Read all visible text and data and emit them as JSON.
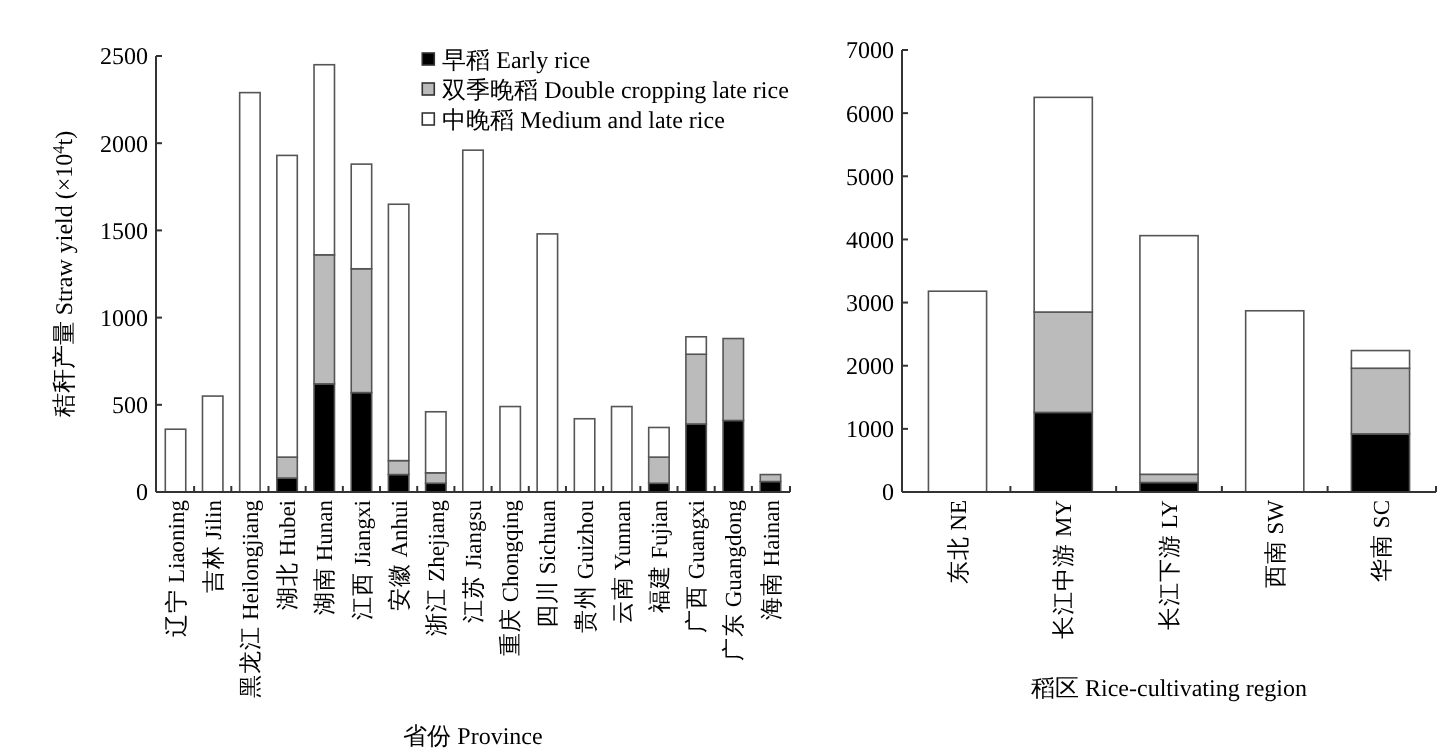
{
  "chart_data": [
    {
      "type": "bar",
      "stacked": true,
      "xlabel": "省份 Province",
      "ylabel": "秸秆产量 Straw yield (×10$^{4}$t)",
      "categories": [
        "辽宁 Liaoning",
        "吉林 Jilin",
        "黑龙江 Heilongjiang",
        "湖北 Hubei",
        "湖南 Hunan",
        "江西 Jiangxi",
        "安徽 Anhui",
        "浙江 Zhejiang",
        "江苏 Jiangsu",
        "重庆 Chongqing",
        "四川 Sichuan",
        "贵州 Guizhou",
        "云南 Yunnan",
        "福建 Fujian",
        "广西 Guangxi",
        "广东 Guangdong",
        "海南 Hainan"
      ],
      "series": [
        {
          "name": "早稻 Early rice",
          "color": "#000000",
          "values": [
            null,
            null,
            null,
            80,
            620,
            570,
            100,
            50,
            null,
            null,
            null,
            null,
            null,
            50,
            390,
            410,
            60
          ]
        },
        {
          "name": "双季晚稻 Double cropping late rice",
          "color": "#bbbbbb",
          "values": [
            null,
            null,
            null,
            120,
            740,
            710,
            80,
            60,
            null,
            null,
            null,
            null,
            null,
            150,
            400,
            470,
            40
          ]
        },
        {
          "name": "中晚稻 Medium and late rice",
          "color": "#ffffff",
          "values": [
            360,
            550,
            2290,
            1730,
            1090,
            600,
            1470,
            350,
            1960,
            490,
            1480,
            420,
            490,
            170,
            100,
            null,
            null
          ]
        }
      ],
      "ylim": [
        0,
        2500
      ],
      "yticks": [
        0,
        500,
        1000,
        1500,
        2000,
        2500
      ],
      "legend": "top right"
    },
    {
      "type": "bar",
      "stacked": true,
      "xlabel": "稻区 Rice-cultivating region",
      "categories": [
        "东北 NE",
        "长江中游 MY",
        "长江下游 LY",
        "西南 SW",
        "华南 SC"
      ],
      "series": [
        {
          "color": "#000000",
          "values": [
            null,
            1260,
            150,
            null,
            920
          ]
        },
        {
          "color": "#bbbbbb",
          "values": [
            null,
            1590,
            130,
            null,
            1040
          ]
        },
        {
          "color": "#ffffff",
          "values": [
            3180,
            3400,
            3780,
            2870,
            280
          ]
        }
      ],
      "ylim": [
        0,
        7000
      ],
      "yticks": [
        0,
        1000,
        2000,
        3000,
        4000,
        5000,
        6000,
        7000
      ],
      "legend": false
    }
  ]
}
